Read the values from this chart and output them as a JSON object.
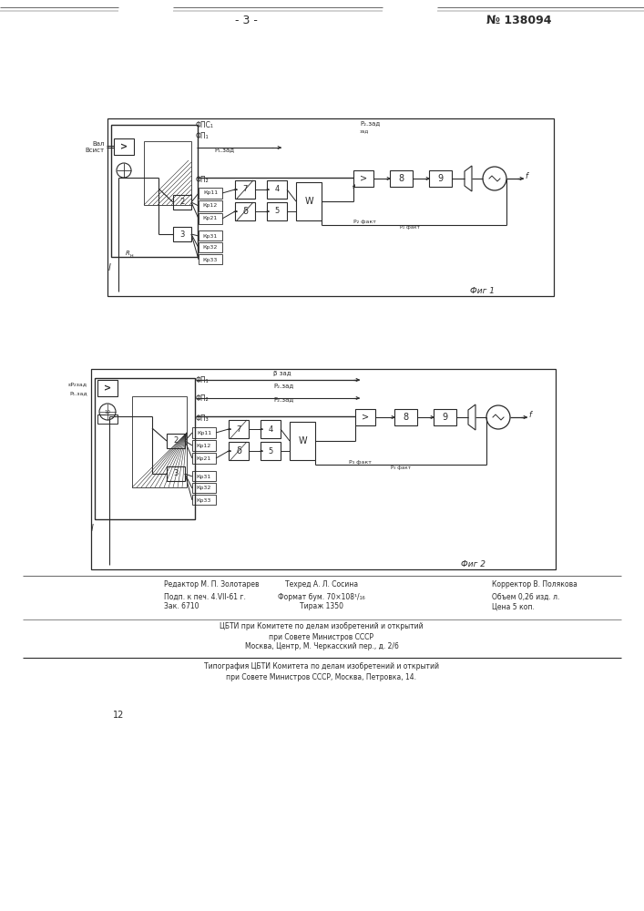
{
  "page_number": "- 3 -",
  "patent_number": "№ 138094",
  "fig1_label": "Фиг 1",
  "fig2_label": "Фиг 2",
  "footer_line1a": "Редактор М. П. Золотарев",
  "footer_line1b": "Техред А. Л. Сосина",
  "footer_line1c": "Корректор В. Полякова",
  "footer_line2a": "Подп. к печ. 4.VII-61 г.",
  "footer_line2b": "Формат бум. 70×108¹/₁₆",
  "footer_line2c": "Объем 0,26 изд. л.",
  "footer_line3a": "Зак. 6710",
  "footer_line3b": "Тираж 1350",
  "footer_line3c": "Цена 5 коп.",
  "footer_cbti1": "ЦБТИ при Комитете по делам изобретений и открытий",
  "footer_cbti2": "при Совете Министров СССР",
  "footer_cbti3": "Москва, Центр, М. Черкасский пер., д. 2/6",
  "footer_tip1": "Типография ЦБТИ Комитета по делам изобретений и открытий",
  "footer_tip2": "при Совете Министров СССР, Москва, Петровка, 14.",
  "page_num_bottom": "12",
  "bg_color": "#ffffff",
  "line_color": "#2a2a2a",
  "text_color": "#2a2a2a"
}
